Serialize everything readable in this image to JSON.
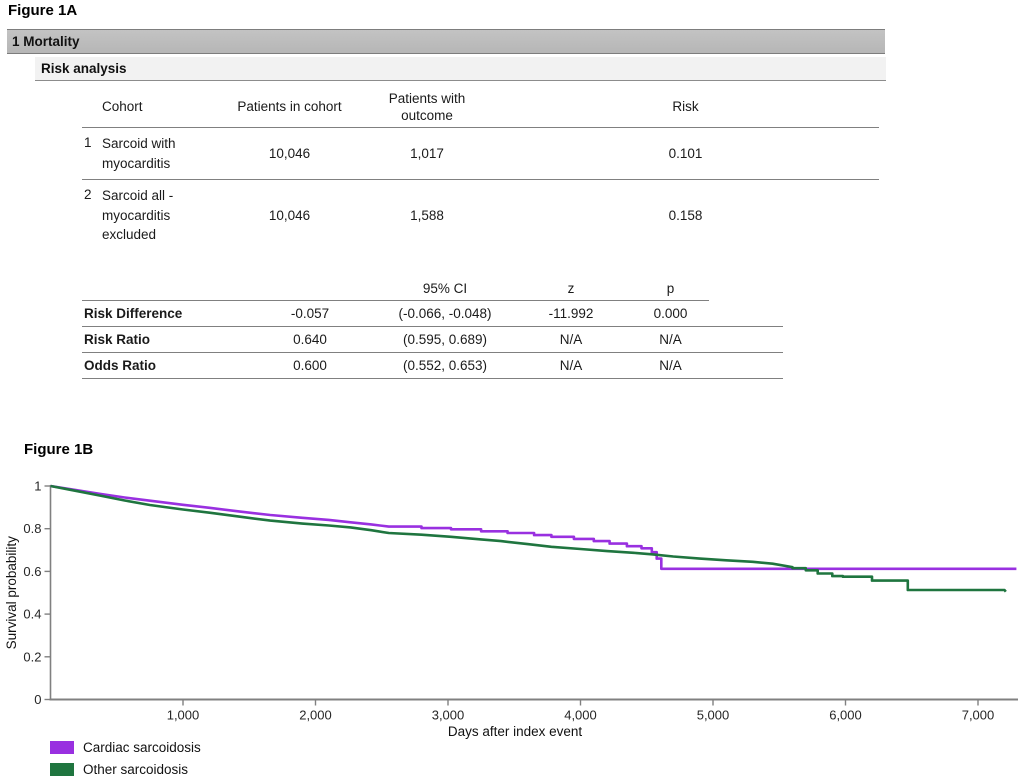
{
  "figure_a": {
    "title": "Figure 1A",
    "section_header": "1 Mortality",
    "subsection_header": "Risk analysis",
    "cohort_table": {
      "columns": {
        "cohort": "Cohort",
        "patients_in_cohort": "Patients in cohort",
        "patients_with_outcome": "Patients with outcome",
        "risk": "Risk"
      },
      "rows": [
        {
          "num": "1",
          "name": "Sarcoid with myocarditis",
          "patients_in_cohort": "10,046",
          "patients_with_outcome": "1,017",
          "risk": "0.101"
        },
        {
          "num": "2",
          "name": "Sarcoid all - myocarditis excluded",
          "patients_in_cohort": "10,046",
          "patients_with_outcome": "1,588",
          "risk": "0.158"
        }
      ]
    },
    "stats_table": {
      "columns": {
        "blank1": "",
        "blank2": "",
        "ci": "95% CI",
        "z": "z",
        "p": "p"
      },
      "rows": [
        {
          "label": "Risk Difference",
          "value": "-0.057",
          "ci": "(-0.066, -0.048)",
          "z": "-11.992",
          "p": "0.000"
        },
        {
          "label": "Risk Ratio",
          "value": "0.640",
          "ci": "(0.595, 0.689)",
          "z": "N/A",
          "p": "N/A"
        },
        {
          "label": "Odds Ratio",
          "value": "0.600",
          "ci": "(0.552, 0.653)",
          "z": "N/A",
          "p": "N/A"
        }
      ]
    }
  },
  "figure_b": {
    "title": "Figure 1B"
  },
  "chart_data": {
    "type": "line",
    "subtype": "kaplan-meier-survival",
    "title": "Figure 1B",
    "xlabel": "Days after index event",
    "ylabel": "Survival probability",
    "xlim": [
      0,
      7300
    ],
    "ylim": [
      0,
      1
    ],
    "x_ticks": [
      1000,
      2000,
      3000,
      4000,
      5000,
      6000,
      7000
    ],
    "x_tick_labels": [
      "1,000",
      "2,000",
      "3,000",
      "4,000",
      "5,000",
      "6,000",
      "7,000"
    ],
    "y_ticks": [
      0,
      0.2,
      0.4,
      0.6,
      0.8,
      1
    ],
    "y_tick_labels": [
      "0",
      "0.2",
      "0.4",
      "0.6",
      "0.8",
      "1"
    ],
    "grid": false,
    "legend_position": "bottom-left",
    "axis_color": "#808080",
    "series": [
      {
        "name": "Cardiac sarcoidosis",
        "color": "#9930e0",
        "points": [
          [
            0,
            1.0
          ],
          [
            150,
            0.985
          ],
          [
            375,
            0.963
          ],
          [
            560,
            0.946
          ],
          [
            750,
            0.931
          ],
          [
            1000,
            0.912
          ],
          [
            1200,
            0.898
          ],
          [
            1430,
            0.88
          ],
          [
            1659,
            0.864
          ],
          [
            1900,
            0.851
          ],
          [
            2100,
            0.841
          ],
          [
            2265,
            0.83
          ],
          [
            2420,
            0.82
          ],
          [
            2553,
            0.81
          ],
          [
            2800,
            0.81
          ],
          [
            2800,
            0.803
          ],
          [
            3023,
            0.803
          ],
          [
            3023,
            0.797
          ],
          [
            3250,
            0.797
          ],
          [
            3250,
            0.788
          ],
          [
            3450,
            0.788
          ],
          [
            3450,
            0.78
          ],
          [
            3650,
            0.78
          ],
          [
            3650,
            0.77
          ],
          [
            3780,
            0.77
          ],
          [
            3780,
            0.762
          ],
          [
            3950,
            0.762
          ],
          [
            3950,
            0.752
          ],
          [
            4100,
            0.752
          ],
          [
            4100,
            0.742
          ],
          [
            4220,
            0.742
          ],
          [
            4220,
            0.73
          ],
          [
            4350,
            0.73
          ],
          [
            4350,
            0.718
          ],
          [
            4460,
            0.718
          ],
          [
            4460,
            0.708
          ],
          [
            4538,
            0.708
          ],
          [
            4538,
            0.69
          ],
          [
            4575,
            0.69
          ],
          [
            4575,
            0.66
          ],
          [
            4610,
            0.66
          ],
          [
            4610,
            0.612
          ],
          [
            7290,
            0.612
          ]
        ]
      },
      {
        "name": "Other sarcoidosis",
        "color": "#1f753f",
        "points": [
          [
            0,
            1.0
          ],
          [
            150,
            0.982
          ],
          [
            375,
            0.955
          ],
          [
            560,
            0.932
          ],
          [
            750,
            0.911
          ],
          [
            1000,
            0.89
          ],
          [
            1200,
            0.875
          ],
          [
            1430,
            0.856
          ],
          [
            1659,
            0.838
          ],
          [
            1900,
            0.824
          ],
          [
            2100,
            0.815
          ],
          [
            2265,
            0.806
          ],
          [
            2420,
            0.793
          ],
          [
            2553,
            0.78
          ],
          [
            2800,
            0.772
          ],
          [
            3023,
            0.762
          ],
          [
            3250,
            0.75
          ],
          [
            3400,
            0.742
          ],
          [
            3600,
            0.728
          ],
          [
            3780,
            0.715
          ],
          [
            4000,
            0.705
          ],
          [
            4200,
            0.695
          ],
          [
            4400,
            0.687
          ],
          [
            4538,
            0.68
          ],
          [
            4700,
            0.67
          ],
          [
            4900,
            0.66
          ],
          [
            5100,
            0.652
          ],
          [
            5300,
            0.645
          ],
          [
            5450,
            0.636
          ],
          [
            5600,
            0.62
          ],
          [
            5600,
            0.615
          ],
          [
            5700,
            0.615
          ],
          [
            5700,
            0.605
          ],
          [
            5790,
            0.605
          ],
          [
            5790,
            0.59
          ],
          [
            5900,
            0.59
          ],
          [
            5900,
            0.578
          ],
          [
            5980,
            0.578
          ],
          [
            5980,
            0.575
          ],
          [
            6200,
            0.575
          ],
          [
            6200,
            0.557
          ],
          [
            6470,
            0.557
          ],
          [
            6470,
            0.513
          ],
          [
            7200,
            0.513
          ],
          [
            7210,
            0.505
          ]
        ]
      }
    ]
  }
}
